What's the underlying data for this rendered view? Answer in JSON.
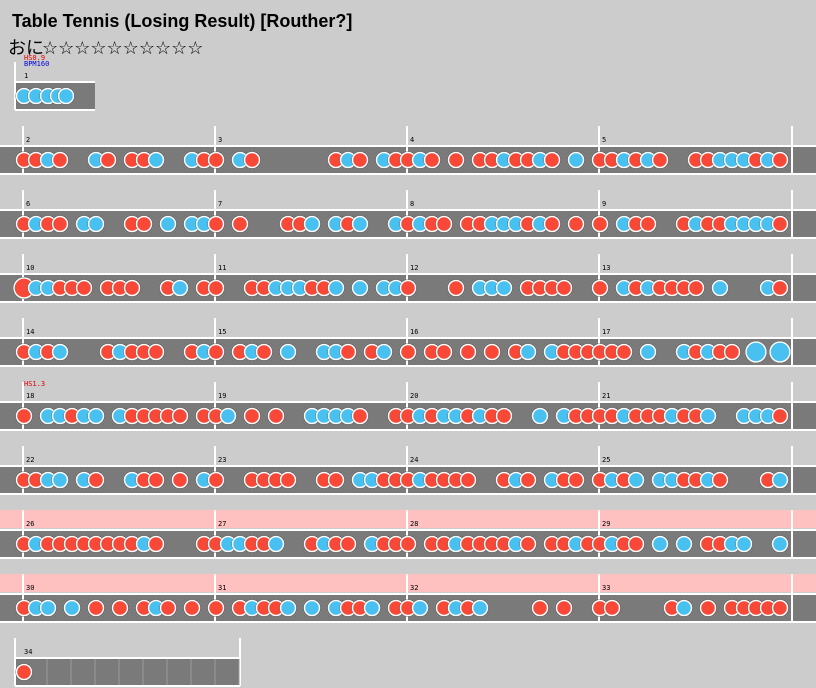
{
  "header": {
    "title": "Table Tennis (Losing Result) [Routher?]",
    "difficulty": "おに",
    "stars": "☆☆☆☆☆☆☆☆☆☆"
  },
  "measures": [
    "1",
    "2",
    "3",
    "4",
    "5",
    "6",
    "7",
    "8",
    "9",
    "10",
    "11",
    "12",
    "13",
    "14",
    "15",
    "16",
    "17",
    "18",
    "19",
    "20",
    "21",
    "22",
    "23",
    "24",
    "25",
    "26",
    "27",
    "28",
    "29",
    "30",
    "31",
    "32",
    "33",
    "34"
  ],
  "commands": [
    {
      "measure": "1",
      "lines": [
        "HS0.9",
        "BPM160"
      ]
    },
    {
      "measure": "18",
      "lines": [
        "HS1.3"
      ]
    }
  ]
}
